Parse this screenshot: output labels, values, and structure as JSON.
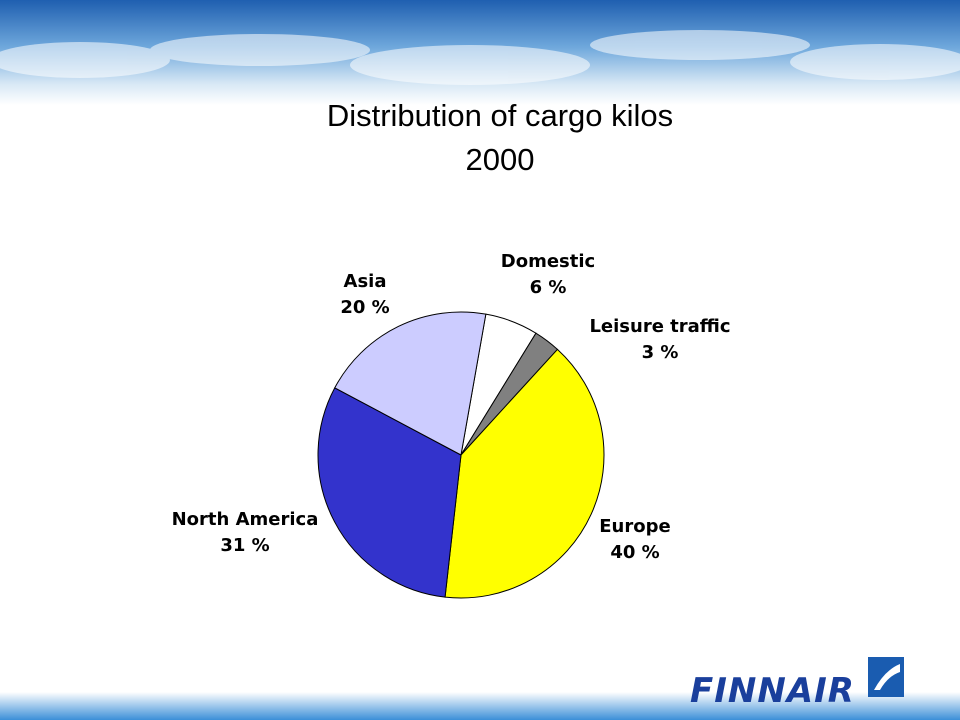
{
  "logo": "FINNAIR",
  "chart_data": {
    "type": "pie",
    "title": "Distribution of cargo kilos",
    "subtitle": "2000",
    "categories": [
      "Domestic",
      "Leisure traffic",
      "Europe",
      "North America",
      "Asia"
    ],
    "values": [
      6,
      3,
      40,
      31,
      20
    ],
    "value_labels": [
      "6 %",
      "3 %",
      "40 %",
      "31 %",
      "20 %"
    ],
    "colors": [
      "#ffffff",
      "#808080",
      "#ffff00",
      "#3333cc",
      "#ccccff"
    ]
  }
}
